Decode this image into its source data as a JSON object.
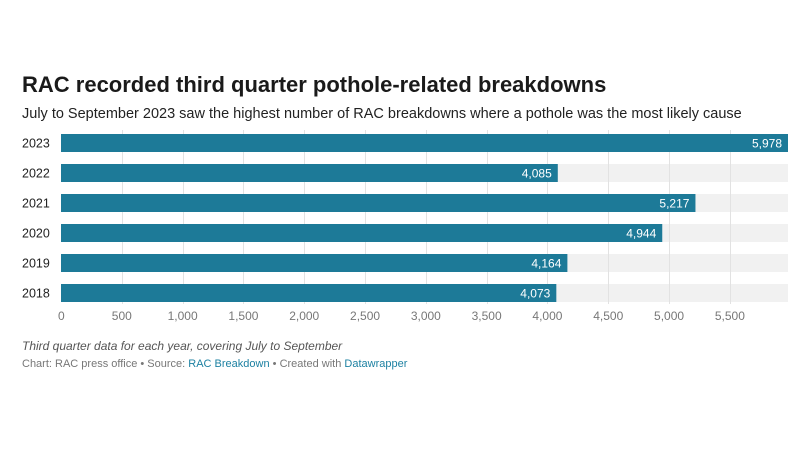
{
  "chart_data": {
    "type": "bar",
    "orientation": "horizontal",
    "title": "RAC recorded third quarter pothole-related breakdowns",
    "subtitle": "July to September 2023 saw the highest number of RAC breakdowns where a pothole was the most likely cause",
    "categories": [
      "2023",
      "2022",
      "2021",
      "2020",
      "2019",
      "2018"
    ],
    "values": [
      5978,
      4085,
      5217,
      4944,
      4164,
      4073
    ],
    "value_labels": [
      "5,978",
      "4,085",
      "5,217",
      "4,944",
      "4,164",
      "4,073"
    ],
    "xlim": [
      0,
      5978
    ],
    "x_ticks": [
      0,
      500,
      1000,
      1500,
      2000,
      2500,
      3000,
      3500,
      4000,
      4500,
      5000,
      5500
    ],
    "x_tick_labels": [
      "0",
      "500",
      "1,000",
      "1,500",
      "2,000",
      "2,500",
      "3,000",
      "3,500",
      "4,000",
      "4,500",
      "5,000",
      "5,500"
    ],
    "grid": true,
    "colors": {
      "bar": "#1d7a98",
      "track": "#f1f1f1",
      "grid": "#e2e2e2",
      "label_inside": "#ffffff"
    }
  },
  "footer": {
    "notes": "Third quarter data for each year, covering July to September",
    "credit_prefix": "Chart: RAC press office • Source: ",
    "source_link": "RAC Breakdown",
    "credit_middle": " • Created with ",
    "tool_link": "Datawrapper"
  }
}
